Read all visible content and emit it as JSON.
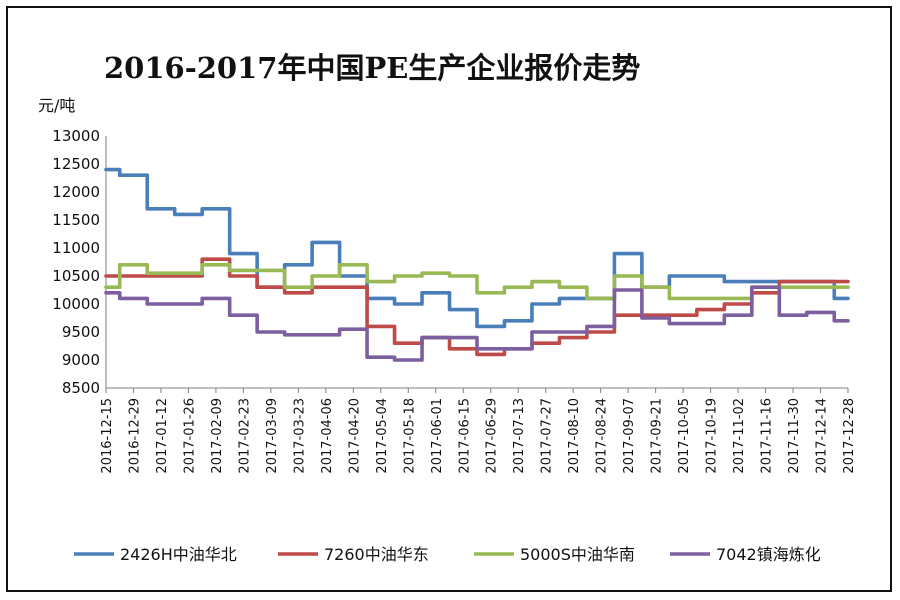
{
  "chart_data": {
    "type": "line",
    "title": "2016-2017年中国PE生产企业报价走势",
    "ylabel": "元/吨",
    "xlabel": "",
    "ylim": [
      8500,
      13000
    ],
    "yticks": [
      "13000",
      "12500",
      "12000",
      "11500",
      "11000",
      "10500",
      "10000",
      "9500",
      "9000",
      "8500"
    ],
    "categories": [
      "2016-12-15",
      "2016-12-29",
      "2017-01-12",
      "2017-01-26",
      "2017-02-09",
      "2017-02-23",
      "2017-03-09",
      "2017-03-23",
      "2017-04-06",
      "2017-04-20",
      "2017-05-04",
      "2017-05-18",
      "2017-06-01",
      "2017-06-15",
      "2017-06-29",
      "2017-07-13",
      "2017-07-27",
      "2017-08-10",
      "2017-08-24",
      "2017-09-07",
      "2017-09-21",
      "2017-10-05",
      "2017-10-19",
      "2017-11-02",
      "2017-11-16",
      "2017-11-30",
      "2017-12-14",
      "2017-12-28"
    ],
    "grid": false,
    "legend_position": "bottom",
    "series": [
      {
        "name": "2426H中油华北",
        "color": "#4a7ebb",
        "values": [
          12400,
          12300,
          11700,
          11600,
          11700,
          10900,
          10300,
          10700,
          11100,
          10500,
          10100,
          10000,
          10200,
          9900,
          9600,
          9700,
          10000,
          10100,
          10100,
          10900,
          10300,
          10500,
          10500,
          10400,
          10400,
          10400,
          10400,
          10100
        ]
      },
      {
        "name": "7260中油华东",
        "color": "#be4b48",
        "values": [
          10500,
          10500,
          10500,
          10500,
          10800,
          10500,
          10300,
          10200,
          10300,
          10300,
          9600,
          9300,
          9400,
          9200,
          9100,
          9200,
          9300,
          9400,
          9500,
          9800,
          9800,
          9800,
          9900,
          10000,
          10200,
          10400,
          10400,
          10400
        ]
      },
      {
        "name": "5000S中油华南",
        "color": "#98b954",
        "values": [
          10300,
          10700,
          10550,
          10550,
          10700,
          10600,
          10600,
          10300,
          10500,
          10700,
          10400,
          10500,
          10550,
          10500,
          10200,
          10300,
          10400,
          10300,
          10100,
          10500,
          10300,
          10100,
          10100,
          10100,
          10300,
          10300,
          10300,
          10300
        ]
      },
      {
        "name": "7042镇海炼化",
        "color": "#7d5fa0",
        "values": [
          10200,
          10100,
          10000,
          10000,
          10100,
          9800,
          9500,
          9450,
          9450,
          9550,
          9050,
          9000,
          9400,
          9400,
          9200,
          9200,
          9500,
          9500,
          9600,
          10250,
          9750,
          9650,
          9650,
          9800,
          10300,
          9800,
          9850,
          9700
        ]
      }
    ]
  }
}
